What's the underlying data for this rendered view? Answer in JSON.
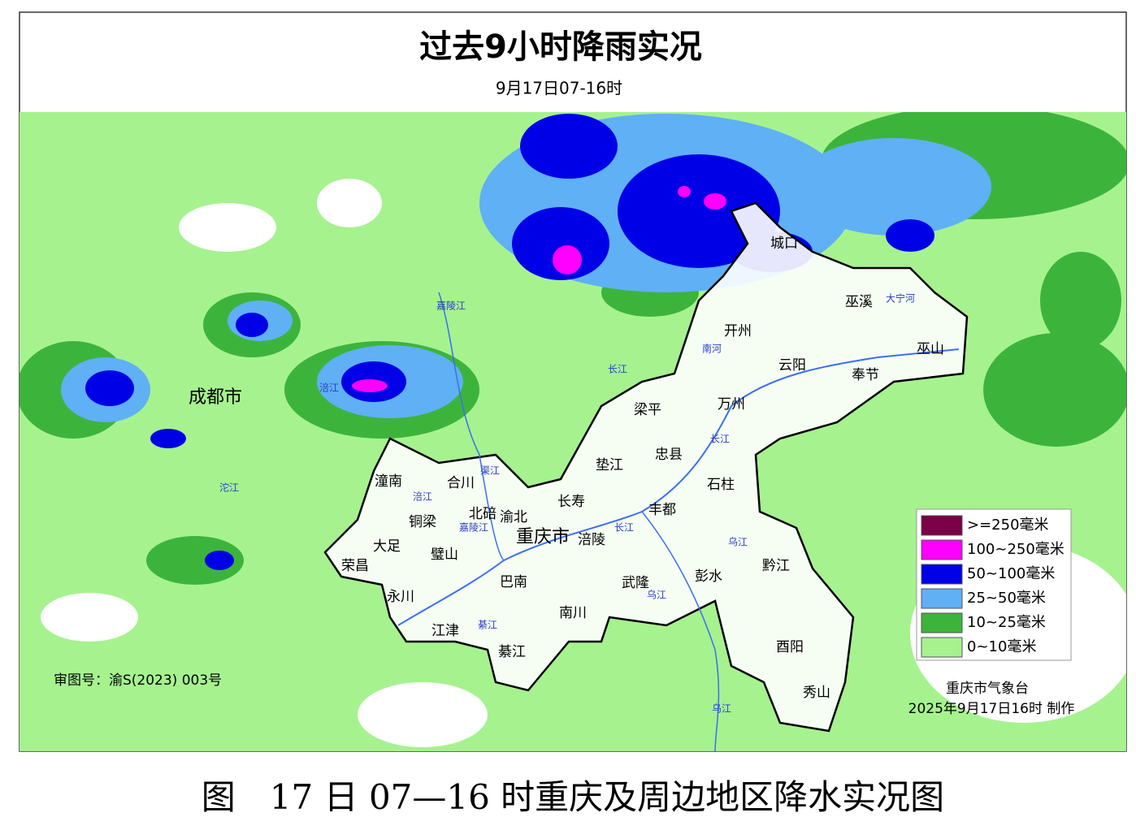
{
  "header": {
    "title": "过去9小时降雨实况",
    "subtitle": "9月17日07-16时"
  },
  "places": [
    "成都市",
    "城口",
    "巫溪",
    "开州",
    "云阳",
    "巫山",
    "奉节",
    "梁平",
    "万州",
    "垫江",
    "忠县",
    "石柱",
    "潼南",
    "合川",
    "长寿",
    "丰都",
    "铜梁",
    "北碚",
    "渝北",
    "重庆市",
    "涪陵",
    "大足",
    "璧山",
    "荣昌",
    "巴南",
    "武隆",
    "彭水",
    "黔江",
    "永川",
    "南川",
    "江津",
    "綦江",
    "酉阳",
    "秀山"
  ],
  "rivers": [
    "嘉陵江",
    "涪江",
    "沱江",
    "涪江",
    "渠江",
    "嘉陵江",
    "长江",
    "长江",
    "长江",
    "乌江",
    "綦江",
    "乌江",
    "乌江",
    "大宁河",
    "南河"
  ],
  "legend": [
    {
      "label": ">=250毫米",
      "color": "#7b0046"
    },
    {
      "label": "100~250毫米",
      "color": "#ff00ff"
    },
    {
      "label": "50~100毫米",
      "color": "#0000e6"
    },
    {
      "label": "25~50毫米",
      "color": "#5fb0f5"
    },
    {
      "label": "10~25毫米",
      "color": "#3cb43c"
    },
    {
      "label": "0~10毫米",
      "color": "#a6f28f"
    }
  ],
  "approval": "审图号：渝S(2023) 003号",
  "credit": {
    "org": "重庆市气象台",
    "time": "2025年9月17日16时 制作"
  },
  "caption": "图　17 日 07—16 时重庆及周边地区降水实况图"
}
